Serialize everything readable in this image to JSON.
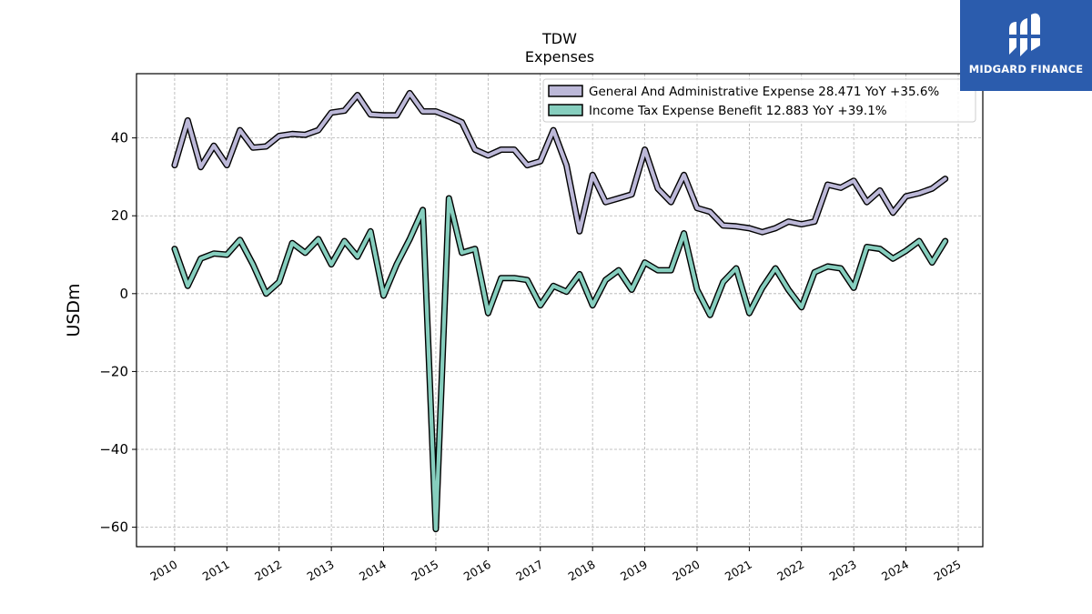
{
  "chart_data": {
    "type": "line",
    "title": "TDW",
    "subtitle": "Expenses",
    "ylabel": "USDm",
    "xlabel": "",
    "xlim": [
      2009.27,
      2025.47
    ],
    "ylim": [
      -65,
      56.5
    ],
    "yticks": [
      -60,
      -40,
      -20,
      0,
      20,
      40
    ],
    "xticks": [
      2010,
      2011,
      2012,
      2013,
      2014,
      2015,
      2016,
      2017,
      2018,
      2019,
      2020,
      2021,
      2022,
      2023,
      2024,
      2025
    ],
    "grid": true,
    "legend_position": "top-right",
    "series": [
      {
        "name": "General And Administrative Expense",
        "legend_label": "General And Administrative Expense  28.471 YoY +35.6%",
        "color": "#bcb8d8",
        "x": [
          2010.0,
          2010.25,
          2010.5,
          2010.75,
          2011.0,
          2011.25,
          2011.5,
          2011.75,
          2012.0,
          2012.25,
          2012.5,
          2012.75,
          2013.0,
          2013.25,
          2013.5,
          2013.75,
          2014.0,
          2014.25,
          2014.5,
          2014.75,
          2015.0,
          2015.25,
          2015.5,
          2015.75,
          2016.0,
          2016.25,
          2016.5,
          2016.75,
          2017.0,
          2017.25,
          2017.5,
          2017.75,
          2018.0,
          2018.25,
          2018.5,
          2018.75,
          2019.0,
          2019.25,
          2019.5,
          2019.75,
          2020.0,
          2020.25,
          2020.5,
          2020.75,
          2021.0,
          2021.25,
          2021.5,
          2021.75,
          2022.0,
          2022.25,
          2022.5,
          2022.75,
          2023.0,
          2023.25,
          2023.5,
          2023.75,
          2024.0,
          2024.25,
          2024.5,
          2024.75
        ],
        "y": [
          33,
          44.5,
          32.5,
          38,
          33,
          42,
          37.5,
          37.8,
          40.5,
          41,
          40.8,
          42,
          46.5,
          47,
          51,
          46,
          45.8,
          45.8,
          51.5,
          46.8,
          46.8,
          45.5,
          44,
          37,
          35.5,
          37,
          37,
          33,
          34,
          42,
          33,
          16,
          30.5,
          23.5,
          24.5,
          25.5,
          37,
          27,
          23.5,
          30.5,
          22,
          21,
          17.5,
          17.3,
          16.8,
          15.8,
          16.8,
          18.5,
          17.8,
          18.5,
          28,
          27.2,
          29,
          23.5,
          26.5,
          20.8,
          25,
          25.8,
          27,
          29.5
        ]
      },
      {
        "name": "Income Tax Expense Benefit",
        "legend_label": "Income Tax Expense Benefit  12.883 YoY +39.1%",
        "color": "#86cebe",
        "x": [
          2010.0,
          2010.25,
          2010.5,
          2010.75,
          2011.0,
          2011.25,
          2011.5,
          2011.75,
          2012.0,
          2012.25,
          2012.5,
          2012.75,
          2013.0,
          2013.25,
          2013.5,
          2013.75,
          2014.0,
          2014.25,
          2014.5,
          2014.75,
          2015.0,
          2015.25,
          2015.5,
          2015.75,
          2016.0,
          2016.25,
          2016.5,
          2016.75,
          2017.0,
          2017.25,
          2017.5,
          2017.75,
          2018.0,
          2018.25,
          2018.5,
          2018.75,
          2019.0,
          2019.25,
          2019.5,
          2019.75,
          2020.0,
          2020.25,
          2020.5,
          2020.75,
          2021.0,
          2021.25,
          2021.5,
          2021.75,
          2022.0,
          2022.25,
          2022.5,
          2022.75,
          2023.0,
          2023.25,
          2023.5,
          2023.75,
          2024.0,
          2024.25,
          2024.5,
          2024.75
        ],
        "y": [
          11.5,
          2,
          9,
          10.3,
          10,
          13.8,
          7.5,
          0,
          3,
          13,
          10.5,
          14,
          7.5,
          13.5,
          9.5,
          16,
          -0.5,
          7.5,
          14,
          21.5,
          -60.5,
          24.5,
          10.5,
          11.5,
          -5,
          4,
          4,
          3.5,
          -3,
          2,
          0.5,
          5,
          -3,
          3.5,
          6,
          1,
          8,
          6,
          6,
          15.5,
          1,
          -5.5,
          3,
          6.5,
          -5,
          1.5,
          6.5,
          1,
          -3.5,
          5.5,
          7,
          6.5,
          1.5,
          12,
          11.5,
          9,
          11,
          13.5,
          8,
          13.5
        ]
      }
    ]
  },
  "watermark": {
    "text": "MIDGARD FINANCE",
    "background": "#2b5cad"
  }
}
